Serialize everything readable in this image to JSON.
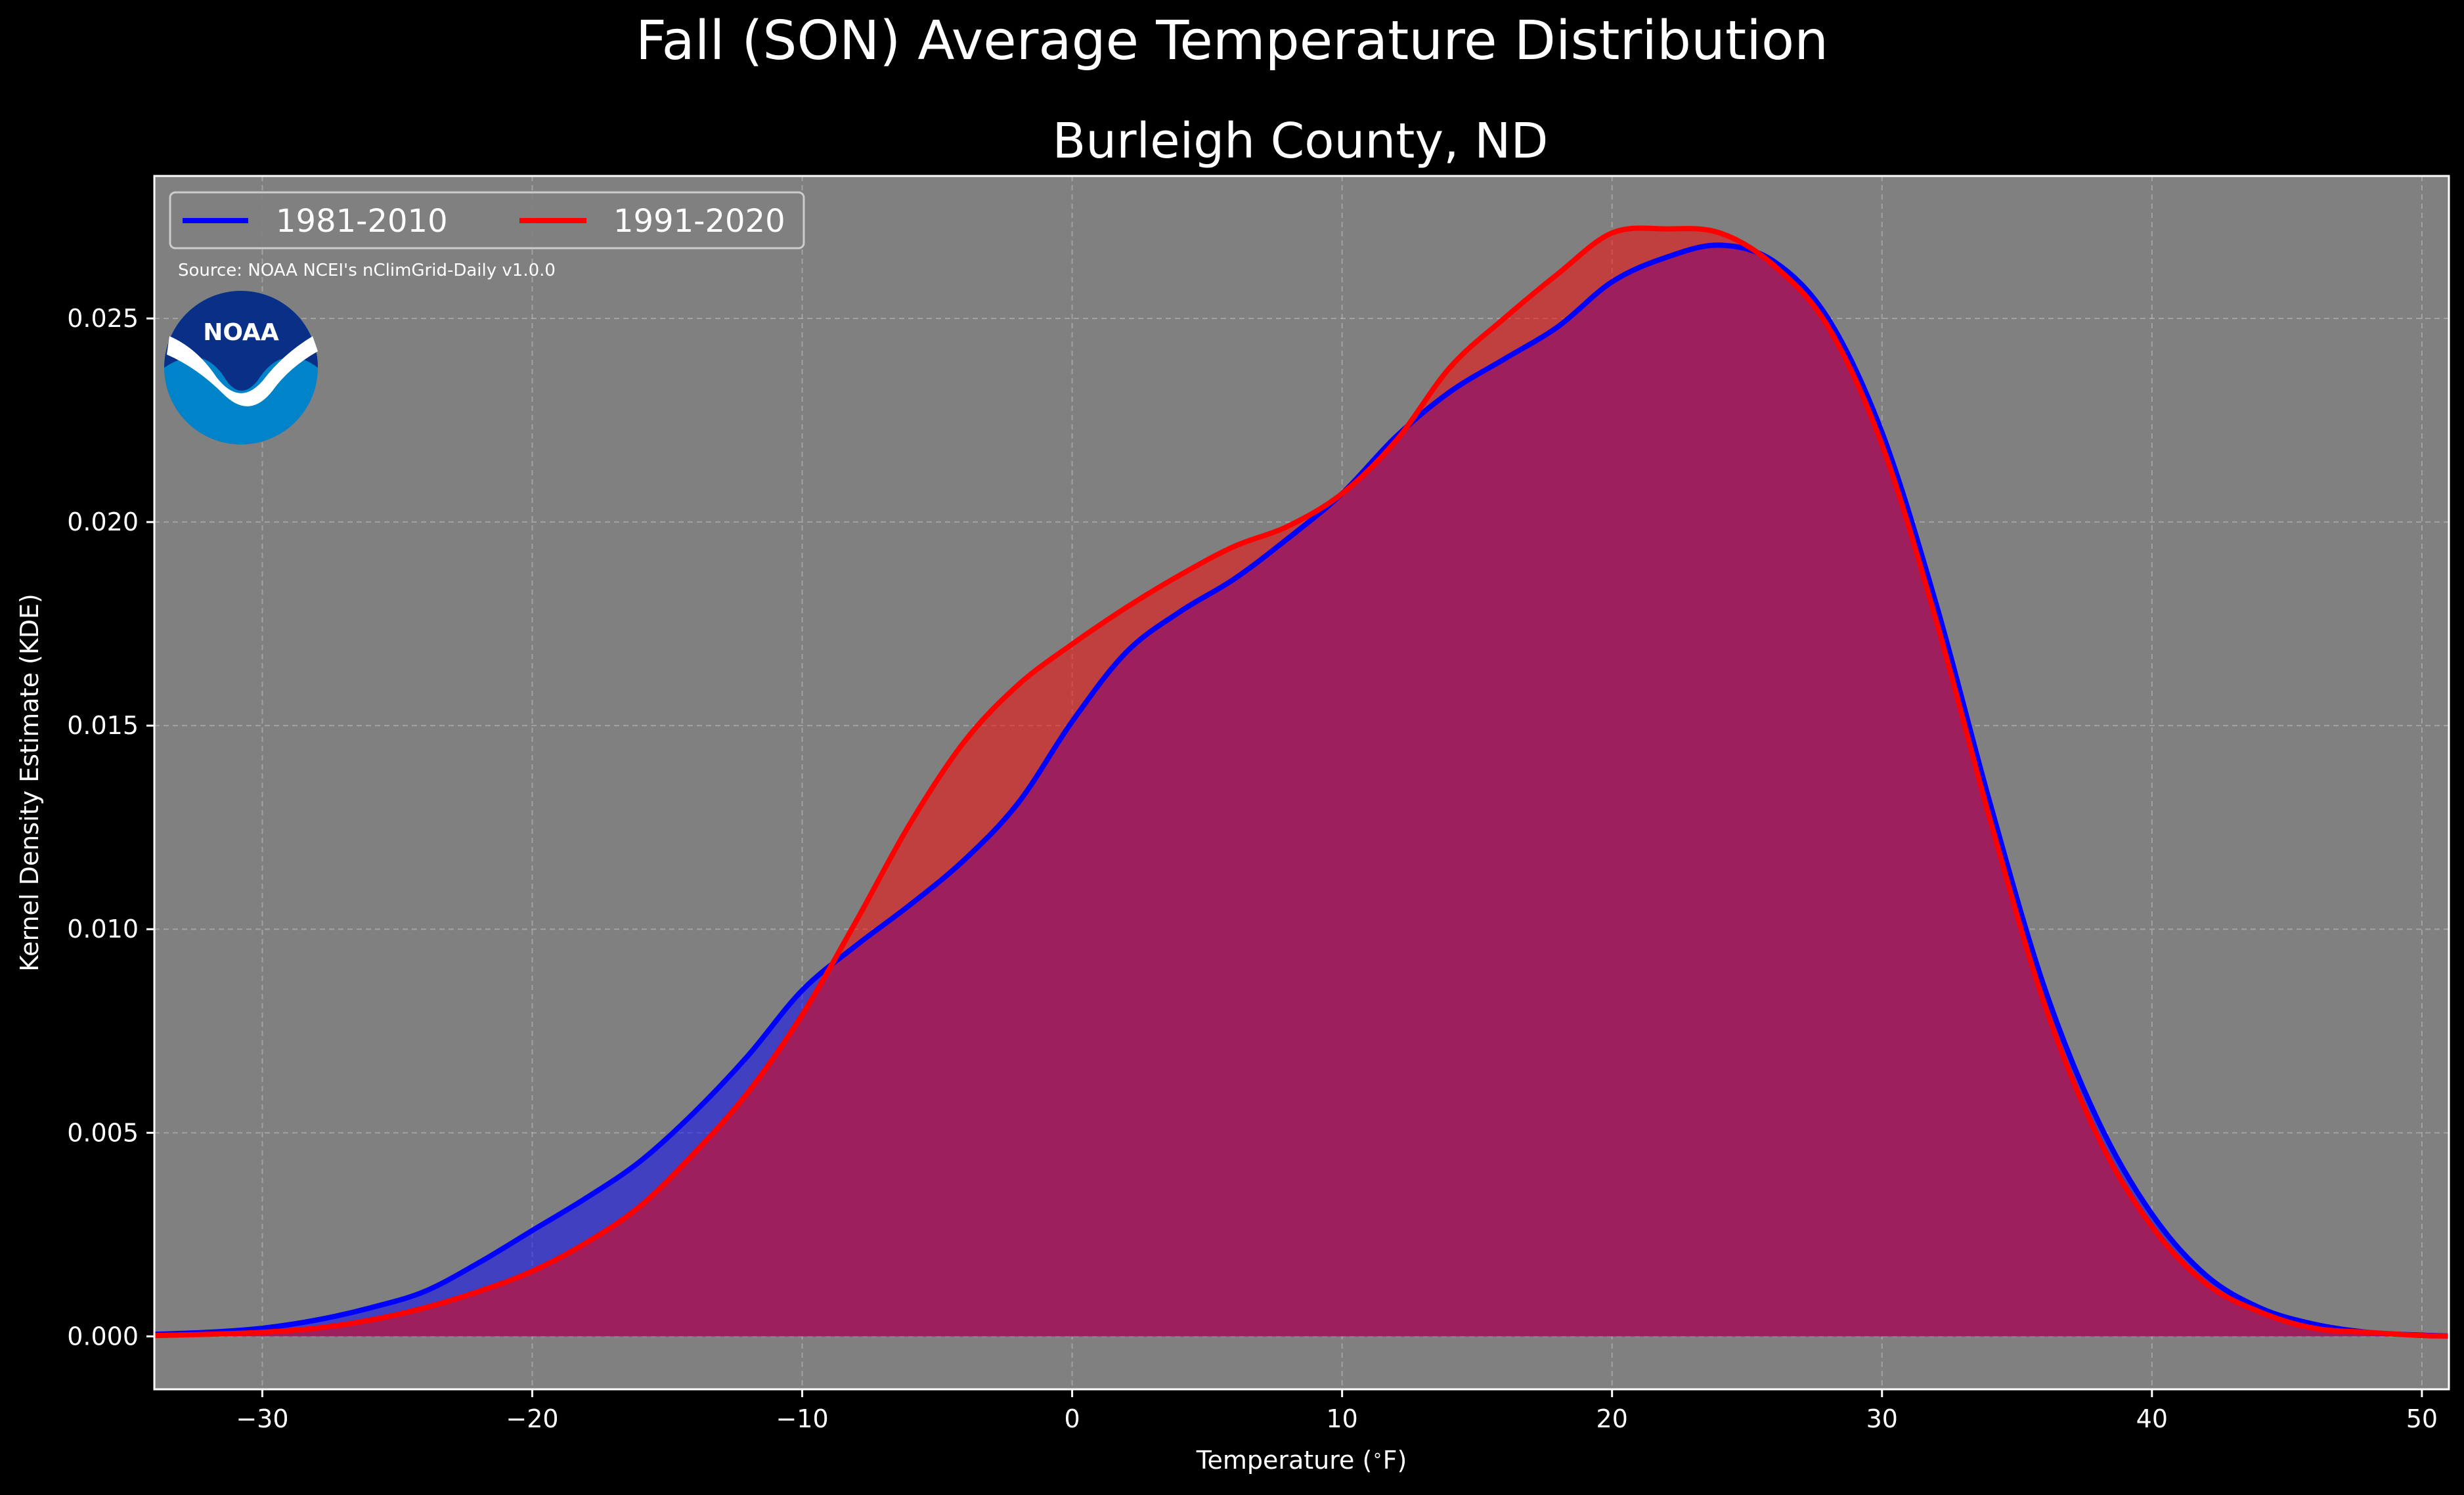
{
  "figure": {
    "suptitle": "Fall (SON) Average Temperature Distribution",
    "subtitle": "Burleigh County, ND",
    "source": "Source: NOAA NCEI's nClimGrid-Daily v1.0.0",
    "logo_text": "NOAA"
  },
  "colors": {
    "background": "#000000",
    "plot_background": "#808080",
    "series_1981_2010": "#0000ff",
    "series_1991_2020": "#ff0000",
    "overlap_fill": "#9e1f5e",
    "grid": "#bdbdbd",
    "logo_dark": "#0a2f87",
    "logo_light": "#0083c9"
  },
  "chart_data": {
    "type": "area",
    "title": "Burleigh County, ND",
    "xlabel": "Temperature ($^\\circ$F)",
    "ylabel": "Kernel Density Estimate (KDE)",
    "xlim": [
      -34,
      51
    ],
    "ylim": [
      -0.0013,
      0.0285
    ],
    "xticks": [
      -30,
      -20,
      -10,
      0,
      10,
      20,
      30,
      40,
      50
    ],
    "yticks": [
      0.0,
      0.005,
      0.01,
      0.015,
      0.02,
      0.025
    ],
    "xtick_labels": [
      "−30",
      "−20",
      "−10",
      "0",
      "10",
      "20",
      "30",
      "40",
      "50"
    ],
    "ytick_labels": [
      "0.000",
      "0.005",
      "0.010",
      "0.015",
      "0.020",
      "0.025"
    ],
    "grid": true,
    "legend": "top-left",
    "x": [
      -34,
      -32,
      -30,
      -28,
      -26,
      -24,
      -22,
      -20,
      -18,
      -16,
      -14,
      -12,
      -10,
      -8,
      -6,
      -4,
      -2,
      0,
      2,
      4,
      6,
      8,
      10,
      12,
      14,
      16,
      18,
      20,
      22,
      24,
      26,
      28,
      30,
      32,
      34,
      36,
      38,
      40,
      42,
      44,
      46,
      48,
      50,
      51
    ],
    "series": [
      {
        "name": "1981-2010",
        "values": [
          5e-05,
          0.0001,
          0.0002,
          0.0004,
          0.0007,
          0.0011,
          0.0018,
          0.0026,
          0.0034,
          0.0043,
          0.0055,
          0.0069,
          0.0085,
          0.0096,
          0.0106,
          0.0117,
          0.0131,
          0.0151,
          0.0168,
          0.0178,
          0.0186,
          0.0196,
          0.0207,
          0.0221,
          0.0232,
          0.024,
          0.0248,
          0.0259,
          0.0265,
          0.0268,
          0.0264,
          0.025,
          0.0222,
          0.018,
          0.0131,
          0.0086,
          0.0053,
          0.003,
          0.0015,
          0.0007,
          0.0003,
          0.0001,
          3e-05,
          1e-05
        ]
      },
      {
        "name": "1991-2020",
        "values": [
          2e-05,
          5e-05,
          0.0001,
          0.0002,
          0.0004,
          0.0007,
          0.0011,
          0.0016,
          0.0023,
          0.0032,
          0.0045,
          0.006,
          0.0079,
          0.0102,
          0.0126,
          0.0146,
          0.016,
          0.017,
          0.0179,
          0.0187,
          0.0194,
          0.0199,
          0.0207,
          0.022,
          0.0238,
          0.025,
          0.0261,
          0.0271,
          0.0272,
          0.0271,
          0.0263,
          0.0248,
          0.0219,
          0.0176,
          0.0127,
          0.0082,
          0.0049,
          0.0027,
          0.0013,
          0.0006,
          0.0002,
          0.0001,
          2e-05,
          1e-05
        ]
      }
    ]
  }
}
